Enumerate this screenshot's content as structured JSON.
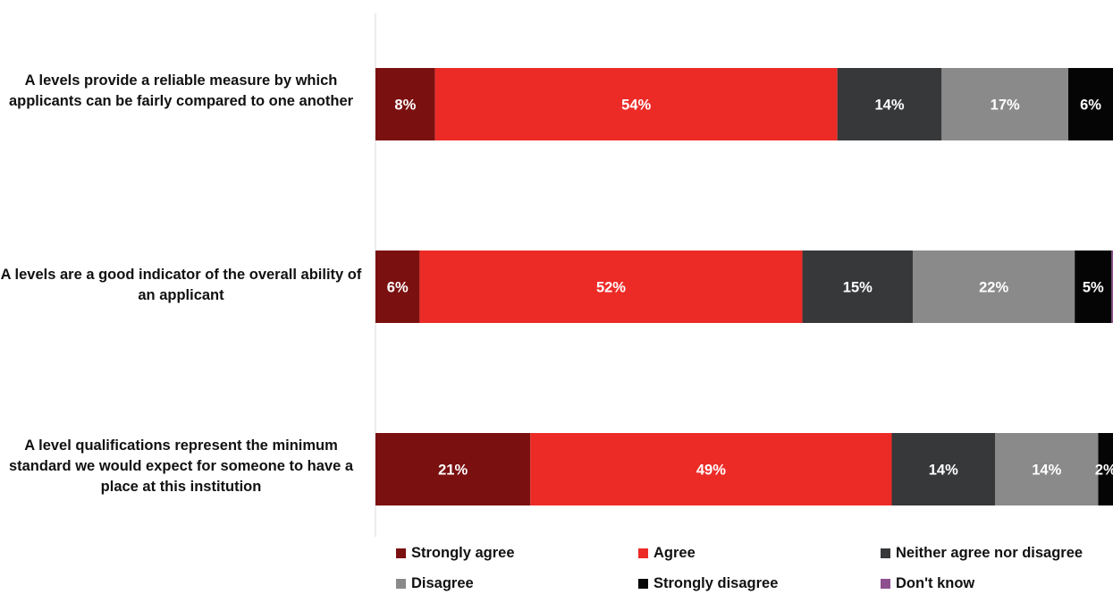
{
  "chart_data": {
    "type": "bar",
    "orientation": "horizontal",
    "stacked": true,
    "categories": [
      "A levels provide a reliable measure by which applicants can be fairly compared to one another",
      "A levels are a good indicator of the overall ability of an applicant",
      "A level qualifications represent the minimum standard we would expect for someone to have a place at this institution"
    ],
    "series": [
      {
        "name": "Strongly agree",
        "color": "#7b1010",
        "values": [
          8,
          6,
          21
        ],
        "labels": [
          "8%",
          "6%",
          "21%"
        ]
      },
      {
        "name": "Agree",
        "color": "#ec2b27",
        "values": [
          54,
          52,
          49
        ],
        "labels": [
          "54%",
          "52%",
          "49%"
        ]
      },
      {
        "name": "Neither agree nor disagree",
        "color": "#37383a",
        "values": [
          14,
          15,
          14
        ],
        "labels": [
          "14%",
          "15%",
          "14%"
        ]
      },
      {
        "name": "Disagree",
        "color": "#8a8a8a",
        "values": [
          17,
          22,
          14
        ],
        "labels": [
          "17%",
          "22%",
          "14%"
        ]
      },
      {
        "name": "Strongly disagree",
        "color": "#050505",
        "values": [
          6,
          5,
          2
        ],
        "labels": [
          "6%",
          "5%",
          "2%"
        ]
      },
      {
        "name": "Don't know",
        "color": "#8e4f8e",
        "values": [
          0,
          0.2,
          0
        ],
        "labels": [
          "",
          "",
          ""
        ]
      }
    ],
    "xlim": [
      0,
      100
    ],
    "grid": false,
    "legend_position": "bottom"
  }
}
